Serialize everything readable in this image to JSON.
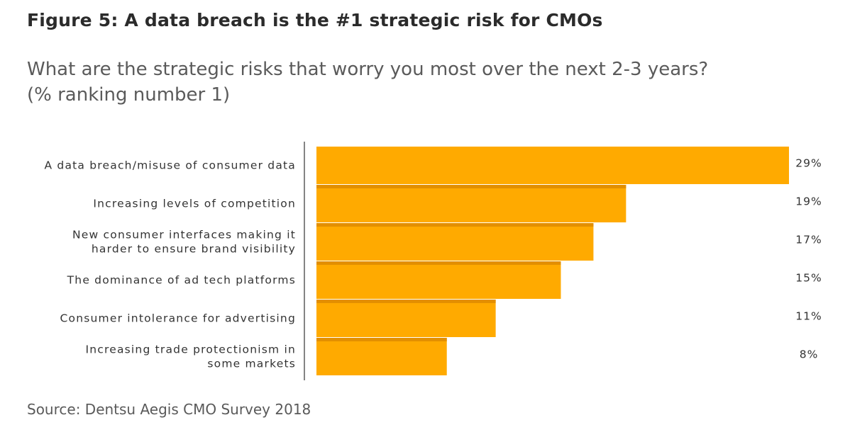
{
  "figure": {
    "title": "Figure 5: A data breach is the #1 strategic risk for CMOs",
    "subtitle_line1": "What are the strategic risks that worry you most over the next 2-3 years?",
    "subtitle_line2": "(% ranking number 1)",
    "source": "Source: Dentsu Aegis CMO Survey 2018"
  },
  "chart_data": {
    "type": "bar",
    "orientation": "horizontal",
    "categories": [
      [
        "A data breach/misuse of consumer data"
      ],
      [
        "Increasing levels of competition"
      ],
      [
        "New consumer interfaces making it",
        "harder to ensure brand visibility"
      ],
      [
        "The dominance of ad tech platforms"
      ],
      [
        "Consumer intolerance for advertising"
      ],
      [
        "Increasing trade protectionism in",
        "some markets"
      ]
    ],
    "values": [
      29,
      19,
      17,
      15,
      11,
      8
    ],
    "value_labels": [
      "29%",
      "19%",
      "17%",
      "15%",
      "11%",
      "8%"
    ],
    "unit": "%",
    "xlim": [
      0,
      29
    ],
    "grid": false,
    "legend": "none",
    "colors": {
      "bar": "#FFAA00",
      "bar_separator": "#E38F00",
      "axis": "#333333",
      "text": "#333333"
    }
  }
}
